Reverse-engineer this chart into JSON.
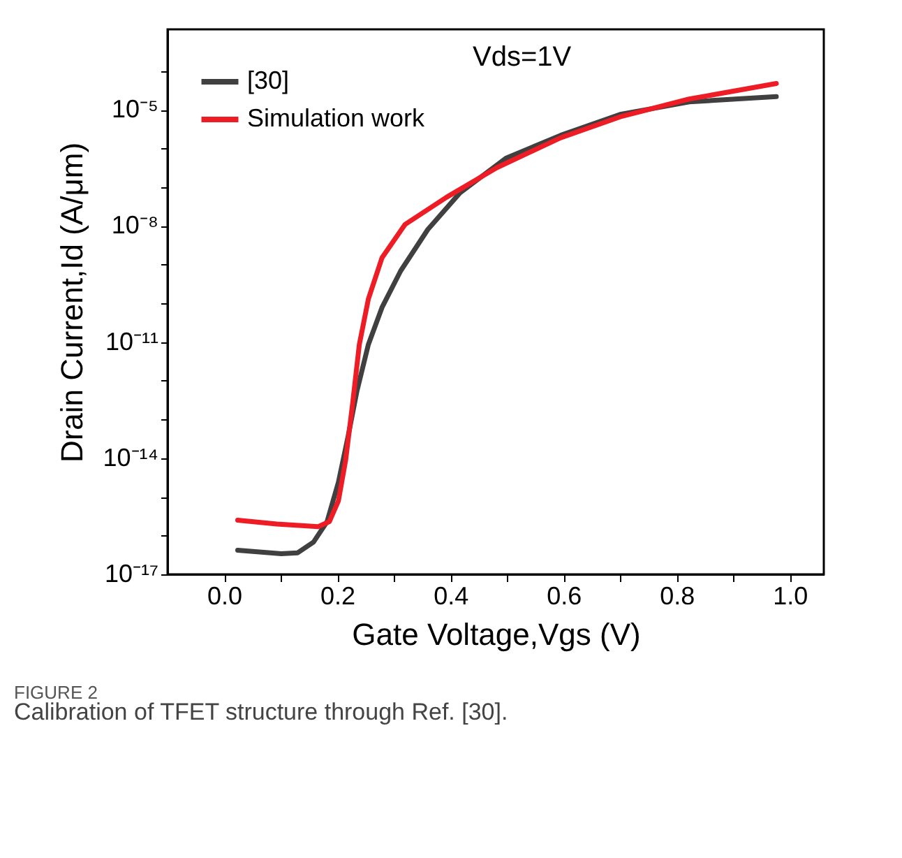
{
  "chart_data": {
    "type": "line",
    "xlabel": "Gate Voltage,Vgs (V)",
    "ylabel": "Drain Current,Id (A/μm)",
    "annotations": [
      "Vds=1V",
      "FIGURE 2",
      "Calibration of TFET structure through Ref. [30]."
    ],
    "log": "y",
    "xlim": [
      -0.1,
      1.06
    ],
    "xticks": [
      {
        "value": 0,
        "label": "0.0"
      },
      {
        "value": 0.1,
        "label": null
      },
      0.2,
      {
        "value": 0.3,
        "label": null
      },
      0.4,
      {
        "value": 0.5,
        "label": null
      },
      0.6,
      {
        "value": 0.7,
        "label": null
      },
      0.8,
      {
        "value": 0.9,
        "label": null
      },
      {
        "value": 1,
        "label": "1.0"
      }
    ],
    "ylim": [
      1e-17,
      0.0012
    ],
    "yticks": [
      {
        "value": 1e-17,
        "label": "10⁻¹⁷"
      },
      {
        "value": 1e-16,
        "label": null
      },
      {
        "value": 1e-15,
        "label": null
      },
      {
        "value": 1e-14,
        "label": "10⁻¹⁴"
      },
      {
        "value": 1e-13,
        "label": null
      },
      {
        "value": 1e-12,
        "label": null
      },
      {
        "value": 1e-11,
        "label": "10⁻¹¹"
      },
      {
        "value": 1e-10,
        "label": null
      },
      {
        "value": 1e-09,
        "label": null
      },
      {
        "value": 1e-08,
        "label": "10⁻⁸"
      },
      {
        "value": 1e-07,
        "label": null
      },
      {
        "value": 1e-06,
        "label": null
      },
      {
        "value": 1e-05,
        "label": "10⁻⁵"
      },
      {
        "value": 0.0001,
        "label": null
      }
    ],
    "grid": false,
    "legend": "top left",
    "line_style": "solid",
    "marker": "none",
    "series": [
      {
        "name": "[30]",
        "color": "#404040",
        "x": [
          0.024,
          0.101,
          0.13,
          0.158,
          0.182,
          0.202,
          0.219,
          0.235,
          0.255,
          0.279,
          0.312,
          0.36,
          0.417,
          0.498,
          0.595,
          0.7,
          0.822,
          0.976
        ],
        "values": [
          4.2e-17,
          3.4e-17,
          3.6e-17,
          6.8e-17,
          2.3e-16,
          2.4e-15,
          3.6e-14,
          5.6e-13,
          8.7e-12,
          7.8e-11,
          6.9e-10,
          8.1e-09,
          7.2e-08,
          5.6e-07,
          2.2e-06,
          7.6e-06,
          1.6e-05,
          2.2e-05
        ]
      },
      {
        "name": "Simulation work",
        "color": "#ee1c25",
        "x": [
          0.024,
          0.093,
          0.166,
          0.186,
          0.202,
          0.215,
          0.227,
          0.239,
          0.255,
          0.279,
          0.32,
          0.393,
          0.482,
          0.595,
          0.7,
          0.822,
          0.976
        ],
        "values": [
          2.5e-16,
          2e-16,
          1.7e-16,
          2.3e-16,
          7.9e-16,
          9.3e-15,
          2.5e-13,
          8.7e-12,
          1.3e-10,
          1.5e-09,
          1.1e-08,
          5.5e-08,
          3.2e-07,
          1.9e-06,
          6.6e-06,
          1.9e-05,
          4.8e-05
        ]
      }
    ]
  }
}
